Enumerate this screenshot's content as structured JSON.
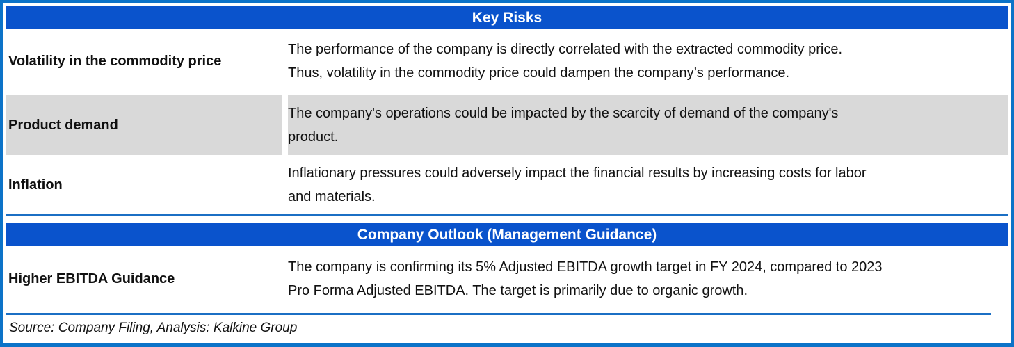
{
  "colors": {
    "header_bg": "#0a53cc",
    "frame_border": "#0c73c8",
    "separator": "#1b6fc4",
    "alt_row_bg": "#d9d9d9",
    "header_text": "#ffffff",
    "body_text": "#111111"
  },
  "sections": [
    {
      "title": "Key Risks",
      "rows": [
        {
          "label": "Volatility in the commodity price",
          "text": "The performance of the company is directly correlated with the extracted commodity price.\nThus, volatility in the commodity price could dampen the company’s performance."
        },
        {
          "label": "Product demand",
          "text": "The company's operations could be impacted by the scarcity of demand of the company's\nproduct."
        },
        {
          "label": "Inflation",
          "text": "Inflationary pressures could adversely impact the financial results by increasing costs for labor\nand materials."
        }
      ]
    },
    {
      "title": "Company Outlook (Management Guidance)",
      "rows": [
        {
          "label": "Higher EBITDA Guidance",
          "text": "The company is confirming its 5% Adjusted EBITDA growth target in FY 2024, compared to 2023\nPro Forma Adjusted EBITDA. The target is primarily due to organic growth."
        }
      ]
    }
  ],
  "footer": {
    "source": "Source: Company Filing, Analysis: Kalkine Group"
  }
}
